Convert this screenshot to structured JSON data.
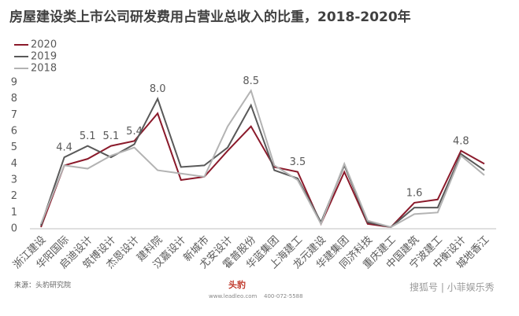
{
  "chart_data": {
    "type": "line",
    "title": "房屋建设类上市公司研发费用占营业总收入的比重，2018-2020年",
    "categories": [
      "浙江建设",
      "华阳国际",
      "启迪设计",
      "筑博设计",
      "杰恩设计",
      "建科院",
      "汉嘉设计",
      "新城市",
      "尤安设计",
      "霍普股份",
      "华蓝集团",
      "上海建工",
      "龙元建设",
      "华建集团",
      "同济科技",
      "重庆建工",
      "中国建筑",
      "宁波建工",
      "中衡设计",
      "城地香江"
    ],
    "series": [
      {
        "name": "2020",
        "color": "#8b1a2b",
        "values": [
          0.1,
          3.9,
          4.3,
          5.1,
          5.4,
          7.1,
          3.0,
          3.2,
          4.8,
          6.3,
          3.8,
          3.5,
          0.3,
          3.5,
          0.3,
          0.1,
          1.6,
          1.8,
          4.8,
          4.0
        ],
        "value_labels": [
          null,
          null,
          null,
          "5.1",
          "5.4",
          null,
          null,
          null,
          null,
          null,
          null,
          "3.5",
          null,
          null,
          null,
          null,
          "1.6",
          null,
          "4.8",
          null
        ]
      },
      {
        "name": "2019",
        "color": "#595959",
        "values": [
          0.2,
          4.4,
          5.1,
          4.4,
          5.2,
          8.0,
          3.8,
          3.9,
          5.0,
          7.6,
          3.6,
          3.1,
          0.4,
          3.9,
          0.4,
          0.1,
          1.3,
          1.3,
          4.6,
          3.6
        ],
        "value_labels": [
          null,
          "4.4",
          "5.1",
          null,
          null,
          "8.0",
          null,
          null,
          null,
          null,
          null,
          null,
          null,
          null,
          null,
          null,
          null,
          null,
          null,
          null
        ]
      },
      {
        "name": "2018",
        "color": "#b3b3b3",
        "values": [
          0.3,
          3.9,
          3.7,
          4.5,
          5.0,
          3.6,
          3.4,
          3.2,
          6.3,
          8.5,
          3.9,
          3.0,
          0.3,
          4.0,
          0.5,
          0.1,
          0.9,
          1.0,
          4.5,
          3.3
        ],
        "value_labels": [
          null,
          null,
          null,
          null,
          null,
          null,
          null,
          null,
          null,
          "8.5",
          null,
          null,
          null,
          null,
          null,
          null,
          null,
          null,
          null,
          null
        ]
      }
    ],
    "ylim": [
      0,
      9
    ],
    "yticks": [
      0,
      1,
      2,
      3,
      4,
      5,
      6,
      7,
      8,
      9
    ],
    "grid": false,
    "legend": "top-left"
  },
  "footer": {
    "source": "来源：头豹研究院",
    "brand": "头豹",
    "website": "www.leadleo.com",
    "phone": "400-072-5588",
    "watermark": "搜狐号 | 小菲娱乐秀"
  }
}
